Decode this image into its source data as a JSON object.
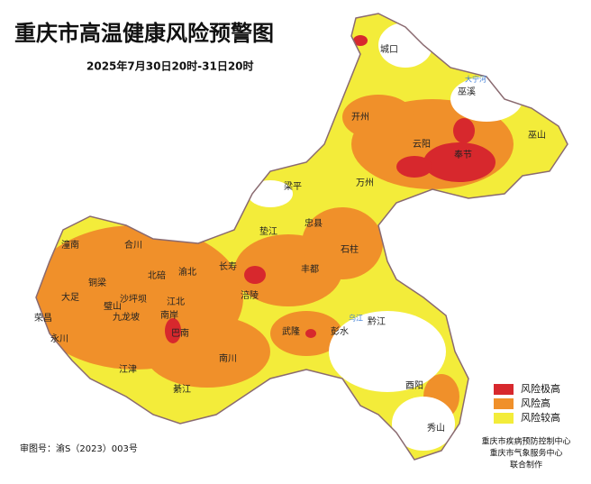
{
  "title": "重庆市高温健康风险预警图",
  "subtitle": "2025年7月30日20时-31日20时",
  "districts": [
    "城口",
    "巫溪",
    "巫山",
    "奉节",
    "云阳",
    "开州",
    "万州",
    "梁平",
    "忠县",
    "垫江",
    "石柱",
    "长寿",
    "丰都",
    "涪陵",
    "武隆",
    "彭水",
    "黔江",
    "酉阳",
    "秀山",
    "南川",
    "綦江",
    "江津",
    "巴南",
    "南岸",
    "江北",
    "渝北",
    "北碚",
    "沙坪坝",
    "九龙坡",
    "璧山",
    "铜梁",
    "合川",
    "潼南",
    "大足",
    "荣昌",
    "永川"
  ],
  "rivers": [
    "大宁河",
    "乌江"
  ],
  "legend": [
    {
      "label": "风险极高",
      "color": "#d7282d"
    },
    {
      "label": "风险高",
      "color": "#f0902a"
    },
    {
      "label": "风险较高",
      "color": "#f3ec3a"
    }
  ],
  "review_number": "审图号：渝S（2023）003号",
  "producers": [
    "重庆市疾病预防控制中心",
    "重庆市气象服务中心",
    "联合制作"
  ]
}
